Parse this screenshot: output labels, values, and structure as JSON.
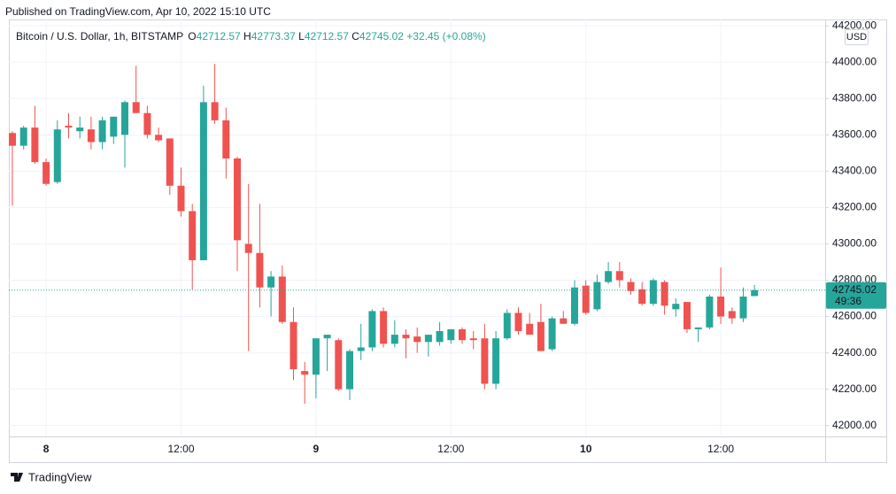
{
  "chart_data": {
    "type": "candlestick",
    "published": "Published on TradingView.com, Apr 10, 2022 15:10 UTC",
    "symbol": "Bitcoin / U.S. Dollar, 1h, BITSTAMP",
    "legend_letters": [
      "O",
      "H",
      "L",
      "C"
    ],
    "change_label": "+32.45 (+0.08%)",
    "countdown": "49:36",
    "currency": "USD",
    "brand": "TradingView",
    "up_color": "#26a69a",
    "down_color": "#ef5350",
    "categories": [
      null,
      null,
      null,
      "8",
      null,
      null,
      null,
      null,
      null,
      null,
      null,
      null,
      null,
      null,
      null,
      "12:00",
      null,
      null,
      null,
      null,
      null,
      null,
      null,
      null,
      null,
      null,
      null,
      "9",
      null,
      null,
      null,
      null,
      null,
      null,
      null,
      null,
      null,
      null,
      null,
      "12:00",
      null,
      null,
      null,
      null,
      null,
      null,
      null,
      null,
      null,
      null,
      null,
      "10",
      null,
      null,
      null,
      null,
      null,
      null,
      null,
      null,
      null,
      null,
      null,
      "12:00",
      null,
      null,
      null
    ],
    "open": [
      43610,
      43540,
      43640,
      43450,
      43340,
      43650,
      43620,
      43630,
      43560,
      43590,
      43600,
      43780,
      43720,
      43600,
      43580,
      43320,
      43180,
      42910,
      43780,
      43680,
      43470,
      43000,
      42950,
      42760,
      42820,
      42570,
      42300,
      42280,
      42480,
      42470,
      42200,
      42410,
      42430,
      42630,
      42450,
      42500,
      42490,
      42460,
      42460,
      42470,
      42530,
      42480,
      42480,
      42230,
      42480,
      42620,
      42560,
      42570,
      42420,
      42590,
      42560,
      42770,
      42640,
      42790,
      42850,
      42790,
      42750,
      42670,
      42790,
      42640,
      42680,
      42530,
      42540,
      42710,
      42630,
      42590,
      42712.57
    ],
    "high": [
      43620,
      43650,
      43760,
      43470,
      43680,
      43720,
      43700,
      43700,
      43700,
      43700,
      43790,
      43980,
      43760,
      43640,
      43580,
      43420,
      43220,
      43870,
      43990,
      43750,
      43480,
      43330,
      43220,
      42850,
      42880,
      42650,
      42350,
      42480,
      42500,
      42480,
      42420,
      42560,
      42640,
      42650,
      42580,
      42530,
      42540,
      42500,
      42570,
      42530,
      42540,
      42520,
      42560,
      42520,
      42640,
      42650,
      42620,
      42670,
      42600,
      42630,
      42800,
      42800,
      42830,
      42900,
      42900,
      42810,
      42790,
      42810,
      42800,
      42700,
      42680,
      42540,
      42720,
      42870,
      42650,
      42760,
      42773.37
    ],
    "low": [
      43210,
      43520,
      43440,
      43320,
      43330,
      43580,
      43580,
      43520,
      43520,
      43550,
      43420,
      43720,
      43580,
      43560,
      43270,
      43150,
      42750,
      42910,
      43660,
      43360,
      42850,
      42410,
      42650,
      42600,
      42560,
      42250,
      42120,
      42150,
      42300,
      42190,
      42140,
      42360,
      42410,
      42430,
      42430,
      42370,
      42400,
      42380,
      42440,
      42450,
      42450,
      42420,
      42200,
      42200,
      42470,
      42500,
      42500,
      42410,
      42410,
      42560,
      42550,
      42610,
      42630,
      42780,
      42760,
      42720,
      42660,
      42660,
      42610,
      42600,
      42510,
      42460,
      42530,
      42560,
      42560,
      42570,
      42712.57
    ],
    "close": [
      43540,
      43640,
      43450,
      43330,
      43630,
      43640,
      43640,
      43560,
      43680,
      43700,
      43780,
      43720,
      43600,
      43570,
      43320,
      43180,
      42910,
      43780,
      43680,
      43470,
      43020,
      42950,
      42760,
      42820,
      42570,
      42310,
      42280,
      42480,
      42500,
      42200,
      42410,
      42430,
      42630,
      42450,
      42500,
      42480,
      42460,
      42500,
      42520,
      42530,
      42470,
      42470,
      42230,
      42480,
      42620,
      42520,
      42500,
      42410,
      42590,
      42560,
      42760,
      42620,
      42790,
      42850,
      42800,
      42740,
      42670,
      42800,
      42660,
      42670,
      42530,
      42540,
      42710,
      42600,
      42590,
      42710,
      42745.02
    ],
    "ylim": [
      41940,
      44235
    ],
    "yticks": [
      {
        "value": 42000,
        "label": "42000.00"
      },
      {
        "value": 42200,
        "label": "42200.00"
      },
      {
        "value": 42400,
        "label": "42400.00"
      },
      {
        "value": 42600,
        "label": "42600.00"
      },
      {
        "value": 42800,
        "label": "42800.00"
      },
      {
        "value": 43000,
        "label": "43000.00"
      },
      {
        "value": 43200,
        "label": "43200.00"
      },
      {
        "value": 43400,
        "label": "43400.00"
      },
      {
        "value": 43600,
        "label": "43600.00"
      },
      {
        "value": 43800,
        "label": "43800.00"
      },
      {
        "value": 44000,
        "label": "44000.00"
      },
      {
        "value": 44200,
        "label": "44200.00"
      }
    ],
    "grid": true
  }
}
